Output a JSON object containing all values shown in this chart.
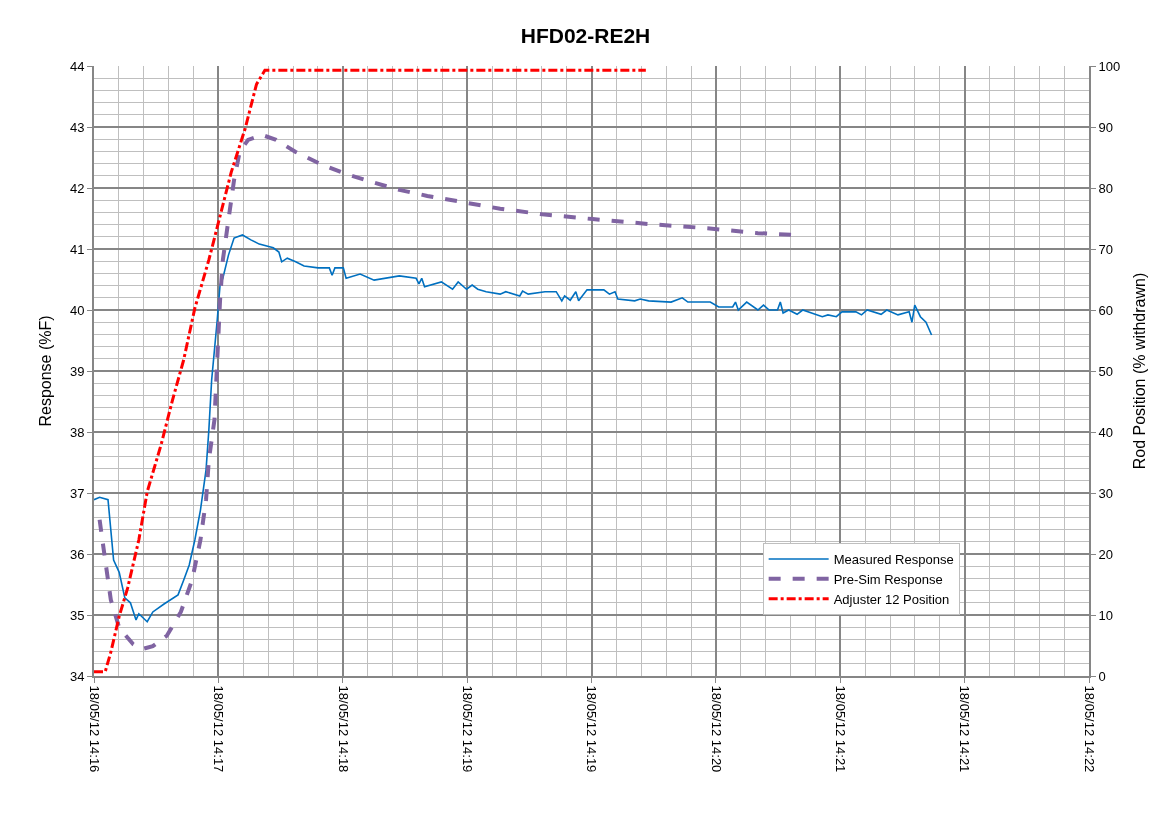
{
  "chart_data": {
    "type": "line",
    "title": "HFD02-RE2H",
    "ylabel": "Response (%F)",
    "y2label": "Rod Position (% withdrawn)",
    "xlim": [
      "--05-18T14:16:48",
      "--05-18T14:22:43.2"
    ],
    "xticks": [
      {
        "value": "--05-18T14:16:48",
        "label": "18/05/12 14:16"
      },
      {
        "value": "--05-18T14:17:32.4",
        "label": "18/05/12 14:17"
      },
      {
        "value": "--05-18T14:18:16.8",
        "label": "18/05/12 14:18"
      },
      {
        "value": "--05-18T14:19:01.2",
        "label": "18/05/12 14:19"
      },
      {
        "value": "--05-18T14:19:45.6",
        "label": "18/05/12 14:19"
      },
      {
        "value": "--05-18T14:20:30",
        "label": "18/05/12 14:20"
      },
      {
        "value": "--05-18T14:21:14.4",
        "label": "18/05/12 14:21"
      },
      {
        "value": "--05-18T14:21:58.8",
        "label": "18/05/12 14:21"
      },
      {
        "value": "--05-18T14:22:43.2",
        "label": "18/05/12 14:22"
      }
    ],
    "ylim": [
      34,
      44
    ],
    "yticks": [
      34,
      35,
      36,
      37,
      38,
      39,
      40,
      41,
      42,
      43,
      44
    ],
    "y2lim": [
      0,
      100
    ],
    "y2ticks": [
      0,
      10,
      20,
      30,
      40,
      50,
      60,
      70,
      80,
      90,
      100
    ],
    "grid": true,
    "legend": "bottom right",
    "marker": "none",
    "series": [
      {
        "name": "Measured Response",
        "color": "#0070c0",
        "line_style": "solid",
        "x": [
          "--05-18T14:16:48",
          "--05-18T14:16:50",
          "--05-18T14:16:53",
          "--05-18T14:16:55",
          "--05-18T14:16:57",
          "--05-18T14:16:59",
          "--05-18T14:17:01",
          "--05-18T14:17:03",
          "--05-18T14:17:04",
          "--05-18T14:17:07",
          "--05-18T14:17:09",
          "--05-18T14:17:13",
          "--05-18T14:17:18",
          "--05-18T14:17:20",
          "--05-18T14:17:22",
          "--05-18T14:17:24",
          "--05-18T14:17:26",
          "--05-18T14:17:28",
          "--05-18T14:17:29",
          "--05-18T14:17:30",
          "--05-18T14:17:32",
          "--05-18T14:17:33",
          "--05-18T14:17:34",
          "--05-18T14:17:36",
          "--05-18T14:17:38",
          "--05-18T14:17:41",
          "--05-18T14:17:44",
          "--05-18T14:17:47",
          "--05-18T14:17:52",
          "--05-18T14:17:54",
          "--05-18T14:17:55",
          "--05-18T14:17:57",
          "--05-18T14:18:00",
          "--05-18T14:18:03",
          "--05-18T14:18:08",
          "--05-18T14:18:12",
          "--05-18T14:18:13",
          "--05-18T14:18:14",
          "--05-18T14:18:17",
          "--05-18T14:18:18",
          "--05-18T14:18:23",
          "--05-18T14:18:28",
          "--05-18T14:18:37",
          "--05-18T14:18:43",
          "--05-18T14:18:44",
          "--05-18T14:18:45",
          "--05-18T14:18:46",
          "--05-18T14:18:52",
          "--05-18T14:18:56",
          "--05-18T14:18:58",
          "--05-18T14:19:01",
          "--05-18T14:19:03",
          "--05-18T14:19:05",
          "--05-18T14:19:08",
          "--05-18T14:19:13",
          "--05-18T14:19:15",
          "--05-18T14:19:20",
          "--05-18T14:19:21",
          "--05-18T14:19:23",
          "--05-18T14:19:29",
          "--05-18T14:19:33",
          "--05-18T14:19:35",
          "--05-18T14:19:36",
          "--05-18T14:19:38",
          "--05-18T14:19:40",
          "--05-18T14:19:41",
          "--05-18T14:19:44",
          "--05-18T14:19:50",
          "--05-18T14:19:52",
          "--05-18T14:19:54",
          "--05-18T14:19:55",
          "--05-18T14:20:01",
          "--05-18T14:20:03",
          "--05-18T14:20:06",
          "--05-18T14:20:14",
          "--05-18T14:20:18",
          "--05-18T14:20:20",
          "--05-18T14:20:28",
          "--05-18T14:20:31",
          "--05-18T14:20:36",
          "--05-18T14:20:37",
          "--05-18T14:20:38",
          "--05-18T14:20:41",
          "--05-18T14:20:45",
          "--05-18T14:20:47",
          "--05-18T14:20:49",
          "--05-18T14:20:52",
          "--05-18T14:20:53",
          "--05-18T14:20:54",
          "--05-18T14:20:56",
          "--05-18T14:20:59",
          "--05-18T14:21:01",
          "--05-18T14:21:08",
          "--05-18T14:21:10",
          "--05-18T14:21:13",
          "--05-18T14:21:15",
          "--05-18T14:21:20",
          "--05-18T14:21:22",
          "--05-18T14:21:24",
          "--05-18T14:21:29",
          "--05-18T14:21:31",
          "--05-18T14:21:35",
          "--05-18T14:21:39",
          "--05-18T14:21:40",
          "--05-18T14:21:41",
          "--05-18T14:21:43",
          "--05-18T14:21:45",
          "--05-18T14:21:47"
        ],
        "values": [
          36.89,
          36.93,
          36.89,
          35.9,
          35.7,
          35.28,
          35.2,
          34.92,
          35.02,
          34.89,
          35.05,
          35.18,
          35.33,
          35.57,
          35.82,
          36.23,
          36.72,
          37.38,
          38.03,
          38.85,
          39.84,
          40.41,
          40.52,
          40.9,
          41.18,
          41.23,
          41.15,
          41.08,
          41.02,
          40.95,
          40.79,
          40.85,
          40.79,
          40.72,
          40.69,
          40.69,
          40.57,
          40.69,
          40.69,
          40.52,
          40.59,
          40.49,
          40.56,
          40.52,
          40.43,
          40.52,
          40.38,
          40.46,
          40.34,
          40.46,
          40.34,
          40.41,
          40.34,
          40.3,
          40.26,
          40.3,
          40.23,
          40.31,
          40.26,
          40.3,
          40.3,
          40.15,
          40.23,
          40.16,
          40.3,
          40.15,
          40.33,
          40.33,
          40.26,
          40.3,
          40.18,
          40.15,
          40.18,
          40.15,
          40.13,
          40.2,
          40.13,
          40.13,
          40.05,
          40.05,
          40.13,
          40.0,
          40.13,
          40.0,
          40.08,
          40.0,
          40.0,
          40.13,
          39.95,
          40.0,
          39.93,
          40.0,
          39.89,
          39.92,
          39.89,
          39.97,
          39.97,
          39.92,
          40.0,
          39.93,
          40.0,
          39.92,
          39.97,
          39.8,
          40.08,
          39.89,
          39.8,
          39.59
        ]
      },
      {
        "name": "Pre-Sim Response",
        "color": "#8064a2",
        "line_style": "dashed",
        "x": [
          "--05-18T14:16:50",
          "--05-18T14:16:52",
          "--05-18T14:16:54",
          "--05-18T14:16:57",
          "--05-18T14:17:02",
          "--05-18T14:17:05",
          "--05-18T14:17:09",
          "--05-18T14:17:14",
          "--05-18T14:17:19",
          "--05-18T14:17:23",
          "--05-18T14:17:26",
          "--05-18T14:17:28",
          "--05-18T14:17:29",
          "--05-18T14:17:31",
          "--05-18T14:17:32",
          "--05-18T14:17:33",
          "--05-18T14:17:34",
          "--05-18T14:17:36",
          "--05-18T14:17:38",
          "--05-18T14:17:40",
          "--05-18T14:17:43",
          "--05-18T14:17:48",
          "--05-18T14:17:53",
          "--05-18T14:18:00",
          "--05-18T14:18:09",
          "--05-18T14:18:18",
          "--05-18T14:18:27",
          "--05-18T14:18:37",
          "--05-18T14:18:47",
          "--05-18T14:18:57",
          "--05-18T14:19:13",
          "--05-18T14:19:28",
          "--05-18T14:19:46",
          "--05-18T14:20:06",
          "--05-18T14:20:27",
          "--05-18T14:20:45",
          "--05-18T14:20:59"
        ],
        "values": [
          36.56,
          35.9,
          35.25,
          34.79,
          34.52,
          34.44,
          34.49,
          34.66,
          35.05,
          35.57,
          36.23,
          36.89,
          37.54,
          38.2,
          39.18,
          40.16,
          40.82,
          41.48,
          42.13,
          42.59,
          42.79,
          42.87,
          42.79,
          42.59,
          42.39,
          42.23,
          42.1,
          41.97,
          41.87,
          41.79,
          41.66,
          41.57,
          41.49,
          41.41,
          41.34,
          41.26,
          41.23
        ]
      },
      {
        "name": "Adjuster 12 Position",
        "color": "#ff0000",
        "line_style": "dashdot",
        "axis": "y2",
        "x": [
          "--05-18T14:16:48",
          "--05-18T14:16:52",
          "--05-18T14:16:54",
          "--05-18T14:16:57",
          "--05-18T14:17:00",
          "--05-18T14:17:04",
          "--05-18T14:17:07",
          "--05-18T14:17:12",
          "--05-18T14:17:16",
          "--05-18T14:17:20",
          "--05-18T14:17:24",
          "--05-18T14:17:29",
          "--05-18T14:17:33",
          "--05-18T14:17:37",
          "--05-18T14:17:42",
          "--05-18T14:17:46",
          "--05-18T14:17:49",
          "--05-18T14:20:05"
        ],
        "values": [
          0.7,
          0.7,
          3.9,
          9.8,
          14.4,
          22.3,
          30.2,
          38.0,
          45.2,
          51.8,
          60.3,
          68.2,
          75.4,
          82.6,
          89.8,
          97.0,
          99.3,
          99.3
        ]
      }
    ]
  }
}
